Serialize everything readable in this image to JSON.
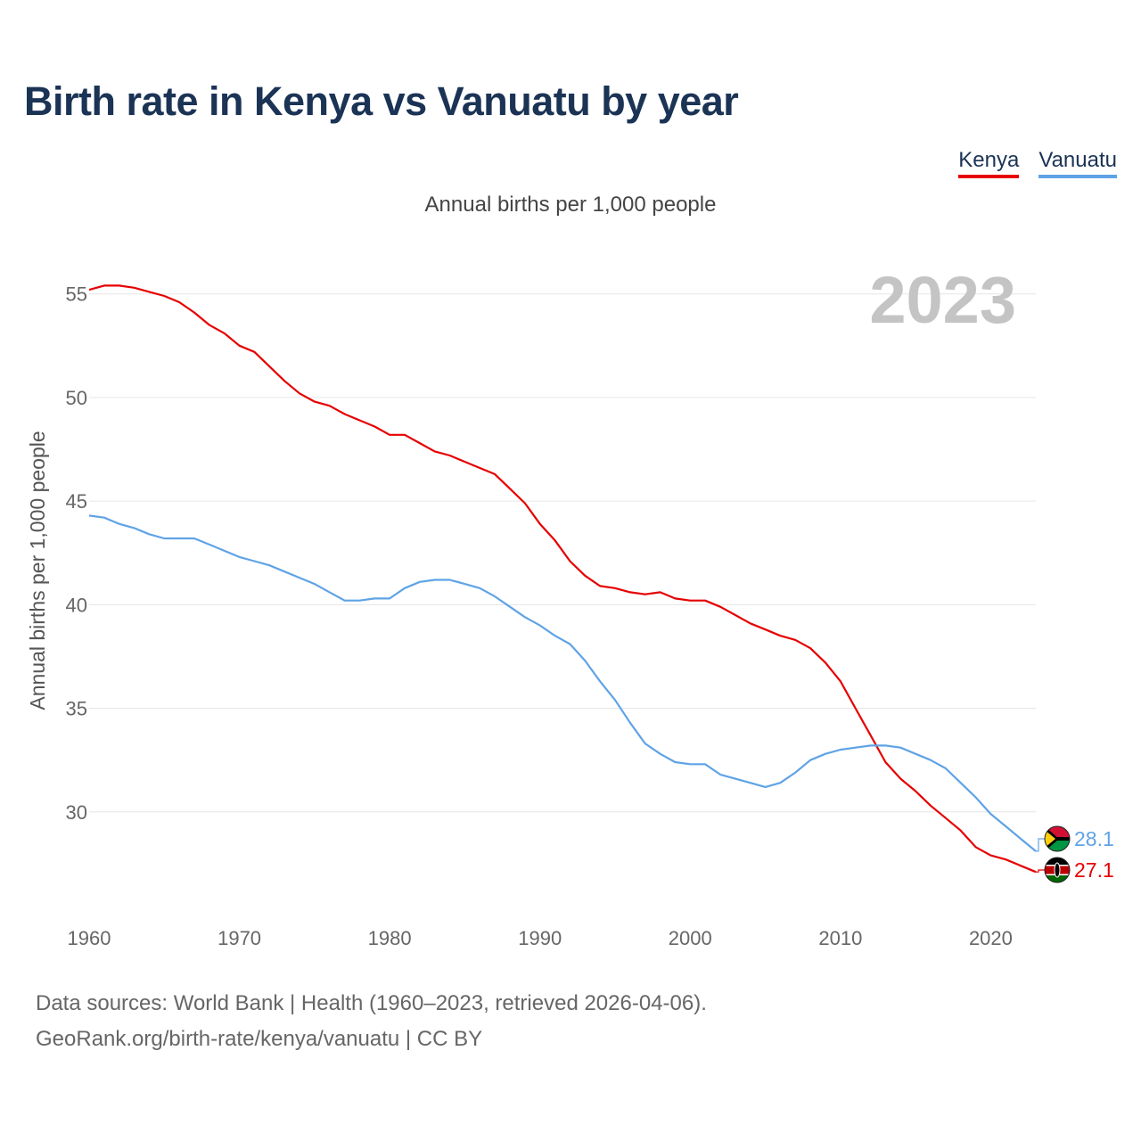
{
  "title": "Birth rate in Kenya vs Vanuatu by year",
  "legend": {
    "kenya": "Kenya",
    "vanuatu": "Vanuatu"
  },
  "subtitle": "Annual births per 1,000 people",
  "year_watermark": "2023",
  "source": {
    "line1": "Data sources: World Bank | Health (1960–2023, retrieved 2026-04-06).",
    "line2": "GeoRank.org/birth-rate/kenya/vanuatu | CC BY"
  },
  "colors": {
    "kenya": "#e60000",
    "vanuatu": "#5fa3e6",
    "grid": "#e6e6e6",
    "axis_text": "#666666",
    "watermark": "#c4c4c4"
  },
  "chart_data": {
    "type": "line",
    "title": "Birth rate in Kenya vs Vanuatu by year",
    "xlabel": "",
    "ylabel": "Annual births per 1,000 people",
    "xlim": [
      1960,
      2023
    ],
    "ylim": [
      25.3,
      58
    ],
    "x_ticks": [
      1960,
      1970,
      1980,
      1990,
      2000,
      2010,
      2020
    ],
    "y_ticks": [
      30,
      35,
      40,
      45,
      50,
      55
    ],
    "grid": true,
    "x": [
      1960,
      1961,
      1962,
      1963,
      1964,
      1965,
      1966,
      1967,
      1968,
      1969,
      1970,
      1971,
      1972,
      1973,
      1974,
      1975,
      1976,
      1977,
      1978,
      1979,
      1980,
      1981,
      1982,
      1983,
      1984,
      1985,
      1986,
      1987,
      1988,
      1989,
      1990,
      1991,
      1992,
      1993,
      1994,
      1995,
      1996,
      1997,
      1998,
      1999,
      2000,
      2001,
      2002,
      2003,
      2004,
      2005,
      2006,
      2007,
      2008,
      2009,
      2010,
      2011,
      2012,
      2013,
      2014,
      2015,
      2016,
      2017,
      2018,
      2019,
      2020,
      2021,
      2022,
      2023
    ],
    "series": [
      {
        "name": "Kenya",
        "final_label": "27.1",
        "values": [
          55.2,
          55.4,
          55.4,
          55.3,
          55.1,
          54.9,
          54.6,
          54.1,
          53.5,
          53.1,
          52.5,
          52.2,
          51.5,
          50.8,
          50.2,
          49.8,
          49.6,
          49.2,
          48.9,
          48.6,
          48.2,
          48.2,
          47.8,
          47.4,
          47.2,
          46.9,
          46.6,
          46.3,
          45.6,
          44.9,
          43.9,
          43.1,
          42.1,
          41.4,
          40.9,
          40.8,
          40.6,
          40.5,
          40.6,
          40.3,
          40.2,
          40.2,
          39.9,
          39.5,
          39.1,
          38.8,
          38.5,
          38.3,
          37.9,
          37.2,
          36.3,
          35.0,
          33.7,
          32.4,
          31.6,
          31.0,
          30.3,
          29.7,
          29.1,
          28.3,
          27.9,
          27.7,
          27.4,
          27.1
        ]
      },
      {
        "name": "Vanuatu",
        "final_label": "28.1",
        "values": [
          44.3,
          44.2,
          43.9,
          43.7,
          43.4,
          43.2,
          43.2,
          43.2,
          42.9,
          42.6,
          42.3,
          42.1,
          41.9,
          41.6,
          41.3,
          41.0,
          40.6,
          40.2,
          40.2,
          40.3,
          40.3,
          40.8,
          41.1,
          41.2,
          41.2,
          41.0,
          40.8,
          40.4,
          39.9,
          39.4,
          39.0,
          38.5,
          38.1,
          37.3,
          36.3,
          35.4,
          34.3,
          33.3,
          32.8,
          32.4,
          32.3,
          32.3,
          31.8,
          31.6,
          31.4,
          31.2,
          31.4,
          31.9,
          32.5,
          32.8,
          33.0,
          33.1,
          33.2,
          33.2,
          33.1,
          32.8,
          32.5,
          32.1,
          31.4,
          30.7,
          29.9,
          29.3,
          28.7,
          28.1
        ]
      }
    ]
  }
}
